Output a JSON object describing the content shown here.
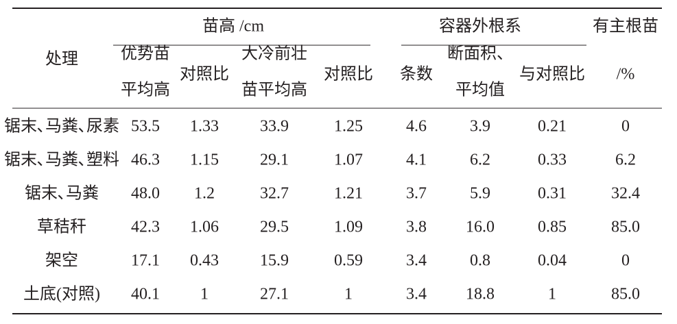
{
  "table": {
    "header": {
      "row_label": "处理",
      "groups": [
        "苗高 /cm",
        "容器外根系",
        "有主根苗"
      ],
      "columns": [
        [
          "优势苗",
          "平均高"
        ],
        [
          "对照比"
        ],
        [
          "大冷前壮",
          "苗平均高"
        ],
        [
          "对照比"
        ],
        [
          "条数"
        ],
        [
          "断面积、",
          "平均值"
        ],
        [
          "与对照比"
        ],
        [
          "/%"
        ]
      ]
    },
    "rows": [
      [
        "锯末､马粪､尿素",
        "53.5",
        "1.33",
        "33.9",
        "1.25",
        "4.6",
        "3.9",
        "0.21",
        "0"
      ],
      [
        "锯末､马粪､塑料",
        "46.3",
        "1.15",
        "29.1",
        "1.07",
        "4.1",
        "6.2",
        "0.33",
        "6.2"
      ],
      [
        "锯末､马粪",
        "48.0",
        "1.2",
        "32.7",
        "1.21",
        "3.7",
        "5.9",
        "0.31",
        "32.4"
      ],
      [
        "草秸秆",
        "42.3",
        "1.06",
        "29.5",
        "1.09",
        "3.8",
        "16.0",
        "0.85",
        "85.0"
      ],
      [
        "架空",
        "17.1",
        "0.43",
        "15.9",
        "0.59",
        "3.4",
        "0.8",
        "0.04",
        "0"
      ],
      [
        "土底(对照)",
        "40.1",
        "1",
        "27.1",
        "1",
        "3.4",
        "18.8",
        "1",
        "85.0"
      ]
    ]
  }
}
